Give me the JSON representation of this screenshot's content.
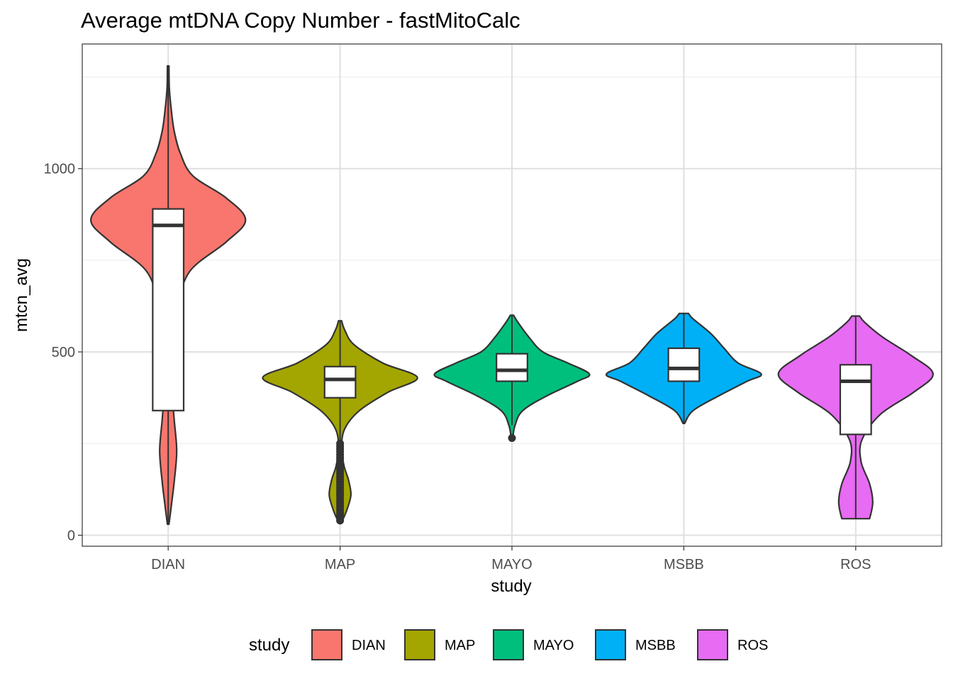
{
  "chart_data": {
    "type": "violin",
    "title": "Average mtDNA Copy Number - fastMitoCalc",
    "xlabel": "study",
    "ylabel": "mtcn_avg",
    "ylim": [
      -30,
      1340
    ],
    "yticks": [
      0,
      500,
      1000
    ],
    "ytick_labels": [
      "0",
      "500",
      "1000"
    ],
    "grid": true,
    "legend": {
      "title": "study",
      "position": "bottom"
    },
    "categories": [
      "DIAN",
      "MAP",
      "MAYO",
      "MSBB",
      "ROS"
    ],
    "colors": [
      "#F8766D",
      "#A3A500",
      "#00BF7D",
      "#00B0F6",
      "#E76BF3"
    ],
    "series": [
      {
        "name": "DIAN",
        "min": 30,
        "max": 1280,
        "box": {
          "q1": 340,
          "median": 845,
          "q3": 890,
          "whisker_low": 30,
          "whisker_high": 1280
        },
        "outliers": [],
        "density": [
          [
            30,
            0.01
          ],
          [
            80,
            0.04
          ],
          [
            150,
            0.08
          ],
          [
            230,
            0.11
          ],
          [
            310,
            0.08
          ],
          [
            360,
            0.06
          ],
          [
            420,
            0.04
          ],
          [
            520,
            0.06
          ],
          [
            620,
            0.12
          ],
          [
            720,
            0.28
          ],
          [
            800,
            0.75
          ],
          [
            860,
            1.0
          ],
          [
            920,
            0.75
          ],
          [
            980,
            0.32
          ],
          [
            1040,
            0.16
          ],
          [
            1100,
            0.08
          ],
          [
            1160,
            0.04
          ],
          [
            1220,
            0.015
          ],
          [
            1280,
            0.01
          ]
        ]
      },
      {
        "name": "MAP",
        "min": 40,
        "max": 585,
        "box": {
          "q1": 375,
          "median": 425,
          "q3": 460,
          "whisker_low": 250,
          "whisker_high": 585
        },
        "outliers": [
          40,
          48,
          55,
          62,
          70,
          78,
          85,
          92,
          100,
          108,
          115,
          122,
          130,
          138,
          145,
          152,
          160,
          168,
          175,
          182,
          190,
          198,
          205,
          212,
          220,
          228,
          235,
          242,
          250
        ],
        "density": [
          [
            40,
            0.03
          ],
          [
            70,
            0.09
          ],
          [
            110,
            0.14
          ],
          [
            150,
            0.11
          ],
          [
            190,
            0.05
          ],
          [
            240,
            0.02
          ],
          [
            290,
            0.06
          ],
          [
            340,
            0.25
          ],
          [
            390,
            0.62
          ],
          [
            430,
            1.0
          ],
          [
            470,
            0.55
          ],
          [
            520,
            0.18
          ],
          [
            560,
            0.06
          ],
          [
            585,
            0.02
          ]
        ]
      },
      {
        "name": "MAYO",
        "min": 265,
        "max": 600,
        "box": {
          "q1": 420,
          "median": 450,
          "q3": 495,
          "whisker_low": 300,
          "whisker_high": 600
        },
        "outliers": [
          265
        ],
        "density": [
          [
            265,
            0.01
          ],
          [
            300,
            0.04
          ],
          [
            340,
            0.14
          ],
          [
            380,
            0.45
          ],
          [
            420,
            0.85
          ],
          [
            440,
            1.0
          ],
          [
            470,
            0.72
          ],
          [
            500,
            0.4
          ],
          [
            540,
            0.22
          ],
          [
            580,
            0.08
          ],
          [
            600,
            0.02
          ]
        ]
      },
      {
        "name": "MSBB",
        "min": 305,
        "max": 605,
        "box": {
          "q1": 420,
          "median": 455,
          "q3": 510,
          "whisker_low": 305,
          "whisker_high": 605
        },
        "outliers": [],
        "density": [
          [
            305,
            0.01
          ],
          [
            340,
            0.12
          ],
          [
            380,
            0.45
          ],
          [
            420,
            0.82
          ],
          [
            440,
            1.0
          ],
          [
            470,
            0.7
          ],
          [
            510,
            0.52
          ],
          [
            550,
            0.35
          ],
          [
            590,
            0.12
          ],
          [
            605,
            0.06
          ]
        ]
      },
      {
        "name": "ROS",
        "min": 45,
        "max": 598,
        "box": {
          "q1": 275,
          "median": 420,
          "q3": 465,
          "whisker_low": 45,
          "whisker_high": 598
        },
        "outliers": [],
        "density": [
          [
            45,
            0.18
          ],
          [
            90,
            0.22
          ],
          [
            140,
            0.18
          ],
          [
            200,
            0.07
          ],
          [
            260,
            0.08
          ],
          [
            330,
            0.32
          ],
          [
            390,
            0.75
          ],
          [
            440,
            1.0
          ],
          [
            490,
            0.72
          ],
          [
            540,
            0.35
          ],
          [
            580,
            0.12
          ],
          [
            598,
            0.05
          ]
        ]
      }
    ]
  }
}
